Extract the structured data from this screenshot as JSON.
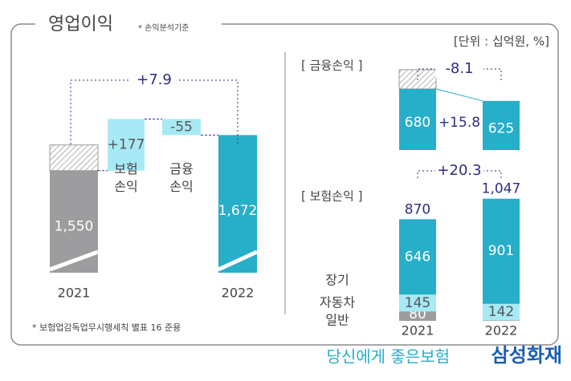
{
  "header": {
    "title": "영업이익",
    "note": "* 손익분석기준"
  },
  "unit": "[단위 : 십억원, %]",
  "footnote": "* 보험업감독업무시행세칙 별표 16 준용",
  "footer": {
    "slogan": "당신에게 좋은보험",
    "brand": "삼성화재"
  },
  "chart_data": [
    {
      "type": "waterfall",
      "categories": [
        "2021",
        "보험 손익",
        "금융 손익",
        "2022"
      ],
      "values": [
        1550,
        177,
        -55,
        1672
      ],
      "value_labels": [
        "1,550",
        "+177",
        "-55",
        "1,672"
      ],
      "change_label": "+7.9",
      "colors": [
        "#9d9d9f",
        "#a8e9f6",
        "#a8e9f6",
        "#27aec9"
      ],
      "ylim": [
        1200,
        1750
      ]
    },
    {
      "type": "bar",
      "title": "[ 금융손익 ]",
      "values": [
        680,
        625
      ],
      "change_label": "-8.1",
      "gap_label": "+15.8",
      "color": "#27aec9",
      "ylim": [
        400,
        720
      ]
    },
    {
      "type": "stacked_bar",
      "title": "[ 보험손익 ]",
      "categories": [
        "2021",
        "2022"
      ],
      "series": [
        {
          "name": "장기",
          "color": "#27aec9",
          "values": [
            646,
            901
          ]
        },
        {
          "name": "자동차",
          "color": "#a8e9f6",
          "values": [
            145,
            142
          ]
        },
        {
          "name": "일반",
          "color": "#9d9d9f",
          "values": [
            80,
            4
          ]
        }
      ],
      "totals": [
        870,
        1047
      ],
      "total_labels": [
        "870",
        "1,047"
      ],
      "change_label": "+20.3",
      "ylim": [
        0,
        1100
      ]
    }
  ]
}
